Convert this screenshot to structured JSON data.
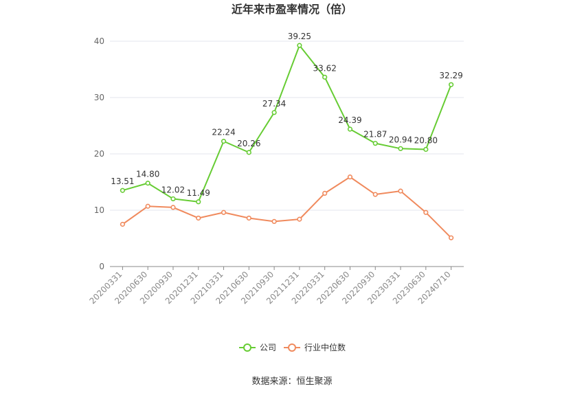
{
  "chart_data": {
    "type": "line",
    "title": "近年来市盈率情况（倍）",
    "x": [
      "20200331",
      "20200630",
      "20200930",
      "20201231",
      "20210331",
      "20210630",
      "20210930",
      "20211231",
      "20220331",
      "20220630",
      "20220930",
      "20230331",
      "20230630",
      "20240710"
    ],
    "ylim": [
      0,
      40
    ],
    "yticks": [
      0,
      10,
      20,
      30,
      40
    ],
    "grid": true,
    "legend_position": "bottom",
    "series": [
      {
        "name": "公司",
        "color": "#66cc33",
        "values": [
          13.51,
          14.8,
          12.02,
          11.49,
          22.24,
          20.26,
          27.34,
          39.25,
          33.62,
          24.39,
          21.87,
          20.94,
          20.8,
          32.29
        ],
        "labels": [
          "13.51",
          "14.80",
          "12.02",
          "11.49",
          "22.24",
          "20.26",
          "27.34",
          "39.25",
          "33.62",
          "24.39",
          "21.87",
          "20.94",
          "20.80",
          "32.29"
        ]
      },
      {
        "name": "行业中位数",
        "color": "#f08a5d",
        "values": [
          7.5,
          10.7,
          10.5,
          8.6,
          9.6,
          8.6,
          8.0,
          8.4,
          13.0,
          15.9,
          12.8,
          13.4,
          9.6,
          5.1
        ]
      }
    ]
  },
  "source_text": "数据来源：恒生聚源"
}
